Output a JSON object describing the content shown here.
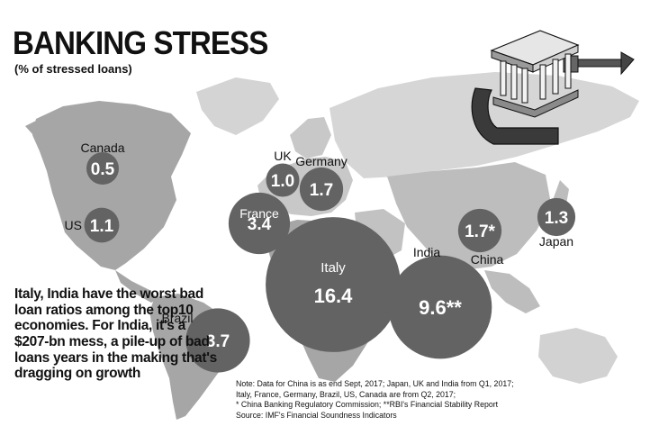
{
  "header": {
    "title": "BANKING STRESS",
    "subtitle": "(% of stressed loans)"
  },
  "callout": "Italy, India have the worst bad loan ratios among the top10 economies. For India, it's a $207-bn mess, a pile-up of bad loans years in the making that's dragging on growth",
  "notes": [
    "Note: Data for China is as end Sept, 2017; Japan, UK and India from Q1, 2017;",
    "Italy, France, Germany, Brazil, US, Canada are from Q2, 2017;",
    "* China Banking Regulatory Commission; **RBI's Financial Stability Report",
    "Source: IMF's Financial Soundness Indicators"
  ],
  "colors": {
    "bubble": "#636363",
    "land_dark": "#a8a8a8",
    "land_light": "#d2d2d2",
    "background": "#ffffff"
  },
  "illustration": "bank-in-clamp-icon",
  "chart_data": {
    "type": "bubble-map",
    "title": "BANKING STRESS",
    "subtitle": "(% of stressed loans)",
    "unit": "% of stressed loans",
    "series": [
      {
        "country": "Canada",
        "value": 0.5,
        "label": "0.5"
      },
      {
        "country": "UK",
        "value": 1.0,
        "label": "1.0"
      },
      {
        "country": "Germany",
        "value": 1.7,
        "label": "1.7"
      },
      {
        "country": "US",
        "value": 1.1,
        "label": "1.1"
      },
      {
        "country": "France",
        "value": 3.4,
        "label": "3.4"
      },
      {
        "country": "Japan",
        "value": 1.3,
        "label": "1.3"
      },
      {
        "country": "China",
        "value": 1.7,
        "label": "1.7*"
      },
      {
        "country": "India",
        "value": 9.6,
        "label": "9.6**"
      },
      {
        "country": "Italy",
        "value": 16.4,
        "label": "16.4"
      },
      {
        "country": "Brazil",
        "value": 3.7,
        "label": "3.7"
      }
    ]
  }
}
